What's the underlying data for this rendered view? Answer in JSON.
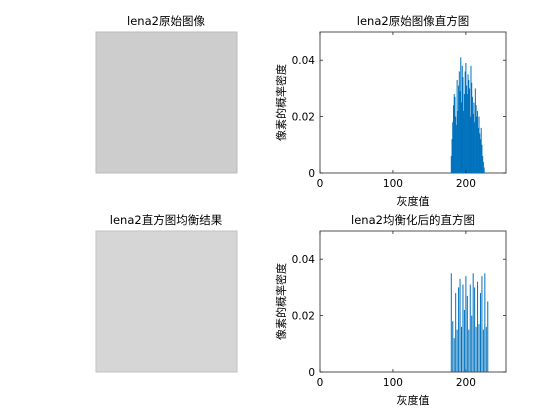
{
  "figure": {
    "background": "#ffffff"
  },
  "images": [
    {
      "title": "lena2原始图像"
    },
    {
      "title": "lena2直方图均衡结果"
    }
  ],
  "chart_data": [
    {
      "type": "bar",
      "title": "lena2原始图像直方图",
      "xlabel": "灰度值",
      "ylabel": "像素的概率密度",
      "xlim": [
        0,
        255
      ],
      "ylim": [
        0,
        0.05
      ],
      "xticks": [
        "0",
        "100",
        "200"
      ],
      "yticks": [
        "0",
        "0.02",
        "0.04"
      ],
      "bar_color": "#0072BD",
      "grid": false,
      "x": [
        180,
        181,
        182,
        183,
        184,
        185,
        186,
        187,
        188,
        189,
        190,
        191,
        192,
        193,
        194,
        195,
        196,
        197,
        198,
        199,
        200,
        201,
        202,
        203,
        204,
        205,
        206,
        207,
        208,
        209,
        210,
        211,
        212,
        213,
        214,
        215,
        216,
        217,
        218,
        219,
        220,
        221,
        222,
        223,
        224,
        225
      ],
      "values": [
        0.006,
        0.012,
        0.018,
        0.024,
        0.028,
        0.027,
        0.02,
        0.017,
        0.033,
        0.022,
        0.031,
        0.036,
        0.029,
        0.041,
        0.025,
        0.038,
        0.034,
        0.022,
        0.028,
        0.036,
        0.039,
        0.031,
        0.028,
        0.035,
        0.033,
        0.03,
        0.02,
        0.038,
        0.032,
        0.027,
        0.021,
        0.025,
        0.018,
        0.03,
        0.024,
        0.02,
        0.022,
        0.016,
        0.02,
        0.014,
        0.012,
        0.016,
        0.01,
        0.006,
        0.004,
        0.002
      ]
    },
    {
      "type": "bar",
      "title": "lena2均衡化后的直方图",
      "xlabel": "灰度值",
      "ylabel": "像素的概率密度",
      "xlim": [
        0,
        255
      ],
      "ylim": [
        0,
        0.05
      ],
      "xticks": [
        "0",
        "100",
        "200"
      ],
      "yticks": [
        "0",
        "0.02",
        "0.04"
      ],
      "bar_color": "#0072BD",
      "grid": false,
      "x": [
        180,
        182,
        184,
        186,
        188,
        190,
        192,
        194,
        196,
        198,
        200,
        202,
        204,
        206,
        208,
        210,
        212,
        214,
        216,
        218,
        220,
        222,
        224,
        226,
        228,
        230
      ],
      "values": [
        0.035,
        0.018,
        0.012,
        0.028,
        0.015,
        0.03,
        0.033,
        0.016,
        0.031,
        0.022,
        0.034,
        0.027,
        0.015,
        0.031,
        0.02,
        0.035,
        0.03,
        0.016,
        0.032,
        0.017,
        0.028,
        0.034,
        0.015,
        0.035,
        0.016,
        0.025
      ]
    }
  ]
}
